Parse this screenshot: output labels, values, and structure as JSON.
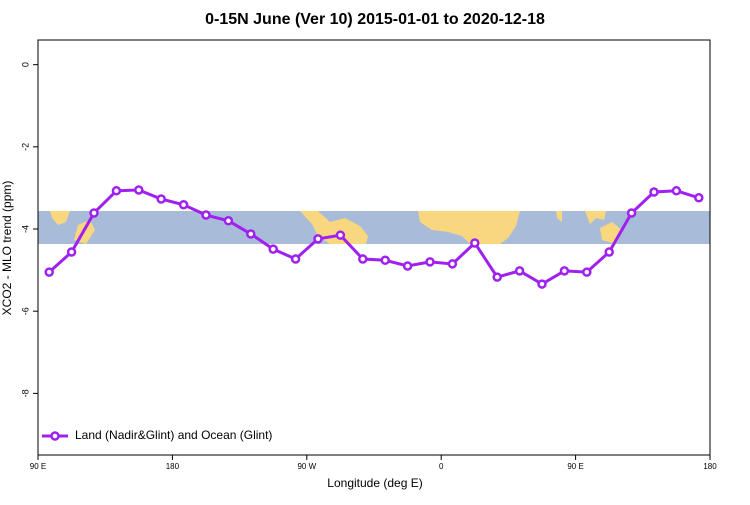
{
  "chart_data": {
    "type": "line",
    "title": "0-15N June (Ver 10)   2015-01-01 to 2020-12-18",
    "x_label": "Longitude (deg E)",
    "y_label": "XCO2 - MLO trend (ppm)",
    "x": [
      97.5,
      112.5,
      127.5,
      142.5,
      157.5,
      172.5,
      187.5,
      202.5,
      217.5,
      232.5,
      247.5,
      262.5,
      277.5,
      292.5,
      307.5,
      322.5,
      337.5,
      352.5,
      367.5,
      382.5,
      397.5,
      412.5,
      427.5,
      442.5,
      457.5,
      472.5,
      487.5,
      502.5,
      517.5,
      532.5
    ],
    "series": [
      {
        "name": "Land (Nadir&Glint) and Ocean (Glint)",
        "color": "#a020f0",
        "values": [
          -5.05,
          -4.56,
          -3.61,
          -3.07,
          -3.05,
          -3.27,
          -3.41,
          -3.66,
          -3.8,
          -4.12,
          -4.49,
          -4.73,
          -4.24,
          -4.15,
          -4.73,
          -4.76,
          -4.9,
          -4.8,
          -4.85,
          -4.34,
          -5.17,
          -5.02,
          -5.34,
          -5.02,
          -5.05,
          -4.56,
          -3.61,
          -3.1,
          -3.07,
          -3.24
        ]
      }
    ],
    "xlim": [
      90,
      540
    ],
    "xticks": [
      {
        "value": 90,
        "label": "90 E"
      },
      180,
      {
        "value": 270,
        "label": "90 W"
      },
      {
        "value": 360,
        "label": "0"
      },
      {
        "value": 450,
        "label": "90 E"
      },
      {
        "value": 540,
        "label": "180"
      }
    ],
    "ylim": [
      -9.5,
      0.6
    ],
    "yticks": [
      0,
      -2,
      -4,
      -6,
      -8
    ],
    "legend": "bottom-left"
  }
}
